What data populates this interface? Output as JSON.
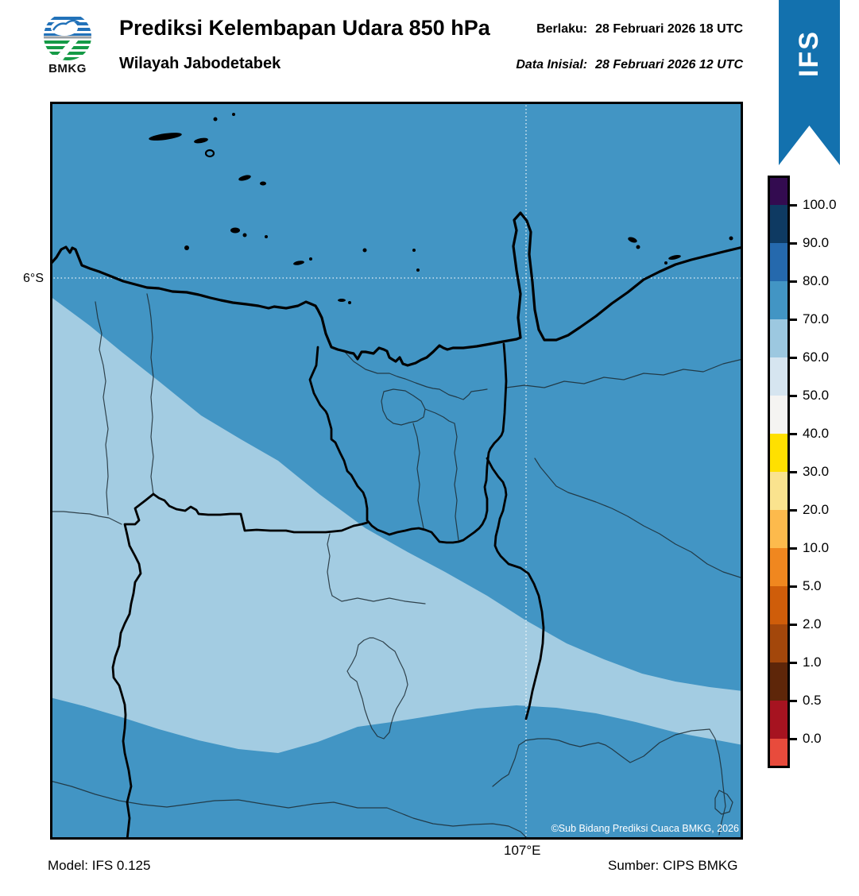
{
  "header": {
    "logo_text": "BMKG",
    "title": "Prediksi Kelembapan Udara 850 hPa",
    "subtitle": "Wilayah Jabodetabek",
    "valid_label": "Berlaku:",
    "valid_value": "28 Februari 2026 18 UTC",
    "init_label": "Data Inisial:",
    "init_value": "28 Februari 2026 12 UTC",
    "ribbon_label": "IFS",
    "ribbon_color": "#1371AE"
  },
  "map": {
    "lat_label": "6°S",
    "lon_label": "107°E",
    "copyright": "©Sub Bidang Prediksi Cuaca BMKG, 2026",
    "colors": {
      "base_70_80": "#4295C4",
      "band_60_70": "#A3CCE2",
      "coastline": "#000000",
      "gridline": "#FFFFFF"
    }
  },
  "colorbar": {
    "tick_labels": [
      "100.0",
      "90.0",
      "80.0",
      "70.0",
      "60.0",
      "50.0",
      "40.0",
      "30.0",
      "20.0",
      "10.0",
      "5.0",
      "2.0",
      "1.0",
      "0.5",
      "0.0"
    ],
    "segment_colors": [
      "#330B50",
      "#0E3A62",
      "#2569AD",
      "#4295C4",
      "#9CC8E0",
      "#D6E5F0",
      "#F5F4F2",
      "#FFE000",
      "#FAE38E",
      "#FDBA4C",
      "#F0871F",
      "#CF5D0A",
      "#A3470B",
      "#5E2609",
      "#A61320",
      "#E84B3C"
    ]
  },
  "footer": {
    "model": "Model: IFS 0.125",
    "source": "Sumber: CIPS BMKG"
  }
}
